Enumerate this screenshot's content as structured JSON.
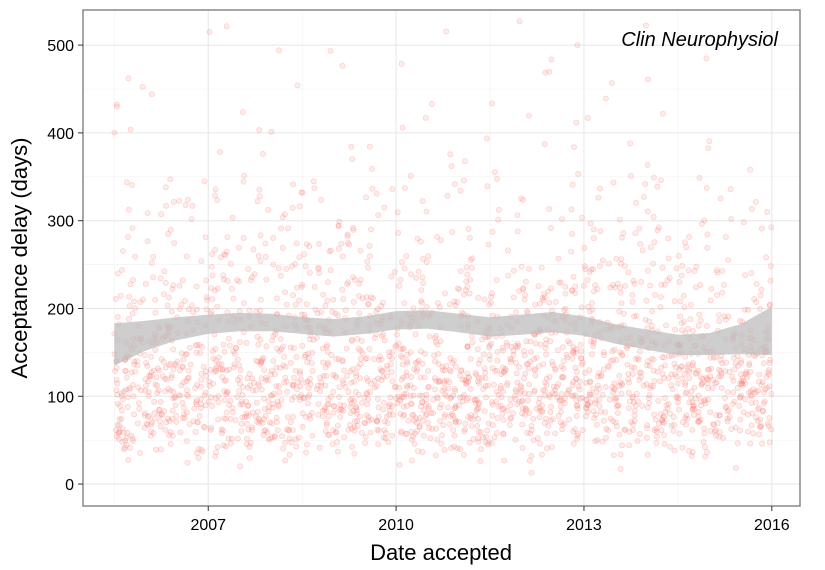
{
  "chart_data": {
    "type": "scatter",
    "title": "",
    "xlabel": "Date accepted",
    "ylabel": "Acceptance delay (days)",
    "annotation": "Clin Neurophysiol",
    "x_ticks": [
      "2007",
      "2010",
      "2013",
      "2016"
    ],
    "x_tick_values": [
      2007,
      2010,
      2013,
      2016
    ],
    "y_ticks": [
      "0",
      "100",
      "200",
      "300",
      "400",
      "500"
    ],
    "y_tick_values": [
      0,
      100,
      200,
      300,
      400,
      500
    ],
    "xlim": [
      2005.0,
      2016.45
    ],
    "ylim": [
      -25,
      540
    ],
    "grid": true,
    "point_color": "#f8766d",
    "band_color": "#bdbdbd",
    "point_summary": "about 2,500 points spanning 2005.5 to 2016.0, delays mostly 40 to 300 days, densest at 60 to 180 days, sparse up to 540 days",
    "smooth_trend": [
      {
        "x": 2005.5,
        "y": 158,
        "lo": 135,
        "hi": 183
      },
      {
        "x": 2006.0,
        "y": 170,
        "lo": 152,
        "hi": 186
      },
      {
        "x": 2006.5,
        "y": 178,
        "lo": 164,
        "hi": 190
      },
      {
        "x": 2007.0,
        "y": 182,
        "lo": 171,
        "hi": 193
      },
      {
        "x": 2007.5,
        "y": 184,
        "lo": 174,
        "hi": 195
      },
      {
        "x": 2008.0,
        "y": 184,
        "lo": 174,
        "hi": 194
      },
      {
        "x": 2008.5,
        "y": 180,
        "lo": 171,
        "hi": 190
      },
      {
        "x": 2009.0,
        "y": 177,
        "lo": 168,
        "hi": 188
      },
      {
        "x": 2009.5,
        "y": 180,
        "lo": 171,
        "hi": 191
      },
      {
        "x": 2010.0,
        "y": 186,
        "lo": 176,
        "hi": 197
      },
      {
        "x": 2010.5,
        "y": 187,
        "lo": 177,
        "hi": 198
      },
      {
        "x": 2011.0,
        "y": 183,
        "lo": 173,
        "hi": 194
      },
      {
        "x": 2011.5,
        "y": 178,
        "lo": 168,
        "hi": 190
      },
      {
        "x": 2012.0,
        "y": 181,
        "lo": 170,
        "hi": 193
      },
      {
        "x": 2012.5,
        "y": 184,
        "lo": 173,
        "hi": 196
      },
      {
        "x": 2013.0,
        "y": 180,
        "lo": 169,
        "hi": 191
      },
      {
        "x": 2013.5,
        "y": 171,
        "lo": 160,
        "hi": 182
      },
      {
        "x": 2014.0,
        "y": 164,
        "lo": 153,
        "hi": 176
      },
      {
        "x": 2014.5,
        "y": 158,
        "lo": 147,
        "hi": 170
      },
      {
        "x": 2015.0,
        "y": 158,
        "lo": 147,
        "hi": 172
      },
      {
        "x": 2015.5,
        "y": 164,
        "lo": 148,
        "hi": 182
      },
      {
        "x": 2016.0,
        "y": 174,
        "lo": 147,
        "hi": 202
      }
    ]
  }
}
